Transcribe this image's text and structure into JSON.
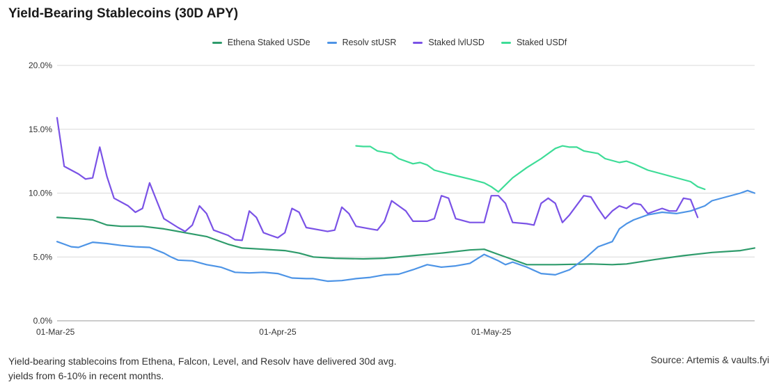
{
  "title": "Yield-Bearing Stablecoins (30D APY)",
  "footer": {
    "note": "Yield-bearing stablecoins from Ethena, Falcon, Level, and Resolv have delivered 30d avg. yields from 6-10% in recent months.",
    "source": "Source: Artemis & vaults.fyi"
  },
  "chart_data": {
    "type": "line",
    "title": "Yield-Bearing Stablecoins (30D APY)",
    "legend_position": "top",
    "grid": true,
    "ylim": [
      0,
      20
    ],
    "yticks": [
      "0.0%",
      "5.0%",
      "10.0%",
      "15.0%",
      "20.0%"
    ],
    "xticks": [
      {
        "label": "01-Mar-25",
        "day": 0
      },
      {
        "label": "01-Apr-25",
        "day": 31
      },
      {
        "label": "01-May-25",
        "day": 61
      }
    ],
    "x_unit": "day index from 01-Mar-25",
    "series": [
      {
        "name": "Ethena Staked USDe",
        "color": "#2e9b6b",
        "points": [
          [
            0,
            8.1
          ],
          [
            3,
            8.0
          ],
          [
            5,
            7.9
          ],
          [
            7,
            7.5
          ],
          [
            9,
            7.4
          ],
          [
            12,
            7.4
          ],
          [
            15,
            7.2
          ],
          [
            18,
            6.9
          ],
          [
            21,
            6.6
          ],
          [
            24,
            6.0
          ],
          [
            26,
            5.7
          ],
          [
            29,
            5.6
          ],
          [
            32,
            5.5
          ],
          [
            34,
            5.3
          ],
          [
            36,
            5.0
          ],
          [
            39,
            4.9
          ],
          [
            43,
            4.85
          ],
          [
            46,
            4.9
          ],
          [
            50,
            5.1
          ],
          [
            54,
            5.3
          ],
          [
            58,
            5.55
          ],
          [
            60,
            5.6
          ],
          [
            62,
            5.2
          ],
          [
            64,
            4.8
          ],
          [
            66,
            4.4
          ],
          [
            70,
            4.4
          ],
          [
            75,
            4.45
          ],
          [
            78,
            4.4
          ],
          [
            80,
            4.45
          ],
          [
            84,
            4.8
          ],
          [
            88,
            5.1
          ],
          [
            92,
            5.35
          ],
          [
            96,
            5.5
          ],
          [
            98,
            5.7
          ]
        ]
      },
      {
        "name": "Resolv stUSR",
        "color": "#4d94e6",
        "points": [
          [
            0,
            6.2
          ],
          [
            1,
            6.0
          ],
          [
            2,
            5.8
          ],
          [
            3,
            5.75
          ],
          [
            5,
            6.15
          ],
          [
            7,
            6.05
          ],
          [
            9,
            5.9
          ],
          [
            11,
            5.8
          ],
          [
            13,
            5.75
          ],
          [
            15,
            5.3
          ],
          [
            16,
            5.0
          ],
          [
            17,
            4.75
          ],
          [
            19,
            4.7
          ],
          [
            21,
            4.4
          ],
          [
            23,
            4.2
          ],
          [
            25,
            3.8
          ],
          [
            27,
            3.75
          ],
          [
            29,
            3.8
          ],
          [
            31,
            3.7
          ],
          [
            33,
            3.35
          ],
          [
            35,
            3.3
          ],
          [
            36,
            3.3
          ],
          [
            37,
            3.2
          ],
          [
            38,
            3.1
          ],
          [
            40,
            3.15
          ],
          [
            42,
            3.3
          ],
          [
            44,
            3.4
          ],
          [
            46,
            3.6
          ],
          [
            48,
            3.65
          ],
          [
            50,
            4.0
          ],
          [
            52,
            4.4
          ],
          [
            54,
            4.2
          ],
          [
            56,
            4.3
          ],
          [
            58,
            4.5
          ],
          [
            60,
            5.2
          ],
          [
            62,
            4.7
          ],
          [
            63,
            4.4
          ],
          [
            64,
            4.6
          ],
          [
            66,
            4.2
          ],
          [
            68,
            3.7
          ],
          [
            70,
            3.6
          ],
          [
            72,
            4.0
          ],
          [
            74,
            4.8
          ],
          [
            76,
            5.8
          ],
          [
            78,
            6.2
          ],
          [
            79,
            7.2
          ],
          [
            80,
            7.6
          ],
          [
            81,
            7.9
          ],
          [
            83,
            8.3
          ],
          [
            85,
            8.5
          ],
          [
            87,
            8.4
          ],
          [
            89,
            8.6
          ],
          [
            91,
            9.0
          ],
          [
            92,
            9.4
          ],
          [
            94,
            9.7
          ],
          [
            96,
            10.0
          ],
          [
            97,
            10.2
          ],
          [
            98,
            10.0
          ]
        ]
      },
      {
        "name": "Staked lvlUSD",
        "color": "#7a52e6",
        "points": [
          [
            0,
            15.9
          ],
          [
            1,
            12.1
          ],
          [
            3,
            11.5
          ],
          [
            4,
            11.1
          ],
          [
            5,
            11.2
          ],
          [
            6,
            13.6
          ],
          [
            7,
            11.3
          ],
          [
            8,
            9.6
          ],
          [
            10,
            9.0
          ],
          [
            11,
            8.5
          ],
          [
            12,
            8.8
          ],
          [
            13,
            10.8
          ],
          [
            14,
            9.4
          ],
          [
            15,
            8.0
          ],
          [
            17,
            7.3
          ],
          [
            18,
            7.0
          ],
          [
            19,
            7.5
          ],
          [
            20,
            9.0
          ],
          [
            21,
            8.4
          ],
          [
            22,
            7.1
          ],
          [
            24,
            6.7
          ],
          [
            25,
            6.35
          ],
          [
            26,
            6.3
          ],
          [
            27,
            8.6
          ],
          [
            28,
            8.1
          ],
          [
            29,
            6.9
          ],
          [
            30,
            6.7
          ],
          [
            31,
            6.5
          ],
          [
            32,
            6.9
          ],
          [
            33,
            8.8
          ],
          [
            34,
            8.5
          ],
          [
            35,
            7.3
          ],
          [
            37,
            7.1
          ],
          [
            38,
            7.0
          ],
          [
            39,
            7.1
          ],
          [
            40,
            8.9
          ],
          [
            41,
            8.4
          ],
          [
            42,
            7.4
          ],
          [
            44,
            7.2
          ],
          [
            45,
            7.1
          ],
          [
            46,
            7.8
          ],
          [
            47,
            9.4
          ],
          [
            48,
            9.0
          ],
          [
            49,
            8.6
          ],
          [
            50,
            7.8
          ],
          [
            52,
            7.8
          ],
          [
            53,
            8.0
          ],
          [
            54,
            9.8
          ],
          [
            55,
            9.6
          ],
          [
            56,
            8.0
          ],
          [
            58,
            7.7
          ],
          [
            60,
            7.7
          ],
          [
            61,
            9.8
          ],
          [
            62,
            9.8
          ],
          [
            63,
            9.2
          ],
          [
            64,
            7.7
          ],
          [
            66,
            7.6
          ],
          [
            67,
            7.5
          ],
          [
            68,
            9.2
          ],
          [
            69,
            9.6
          ],
          [
            70,
            9.2
          ],
          [
            71,
            7.7
          ],
          [
            72,
            8.3
          ],
          [
            74,
            9.8
          ],
          [
            75,
            9.7
          ],
          [
            76,
            8.8
          ],
          [
            77,
            8.0
          ],
          [
            78,
            8.6
          ],
          [
            79,
            9.0
          ],
          [
            80,
            8.8
          ],
          [
            81,
            9.2
          ],
          [
            82,
            9.1
          ],
          [
            83,
            8.4
          ],
          [
            85,
            8.8
          ],
          [
            86,
            8.6
          ],
          [
            87,
            8.6
          ],
          [
            88,
            9.6
          ],
          [
            89,
            9.5
          ],
          [
            90,
            8.1
          ]
        ]
      },
      {
        "name": "Staked USDf",
        "color": "#3ddc97",
        "points": [
          [
            42,
            13.7
          ],
          [
            43,
            13.65
          ],
          [
            44,
            13.65
          ],
          [
            45,
            13.3
          ],
          [
            47,
            13.1
          ],
          [
            48,
            12.7
          ],
          [
            50,
            12.3
          ],
          [
            51,
            12.4
          ],
          [
            52,
            12.2
          ],
          [
            53,
            11.8
          ],
          [
            55,
            11.5
          ],
          [
            58,
            11.1
          ],
          [
            60,
            10.8
          ],
          [
            61,
            10.5
          ],
          [
            62,
            10.1
          ],
          [
            64,
            11.2
          ],
          [
            66,
            12.0
          ],
          [
            68,
            12.7
          ],
          [
            70,
            13.5
          ],
          [
            71,
            13.7
          ],
          [
            72,
            13.6
          ],
          [
            73,
            13.6
          ],
          [
            74,
            13.3
          ],
          [
            76,
            13.1
          ],
          [
            77,
            12.7
          ],
          [
            79,
            12.4
          ],
          [
            80,
            12.5
          ],
          [
            81,
            12.3
          ],
          [
            83,
            11.8
          ],
          [
            85,
            11.5
          ],
          [
            87,
            11.2
          ],
          [
            89,
            10.9
          ],
          [
            90,
            10.5
          ],
          [
            91,
            10.3
          ]
        ]
      }
    ]
  }
}
